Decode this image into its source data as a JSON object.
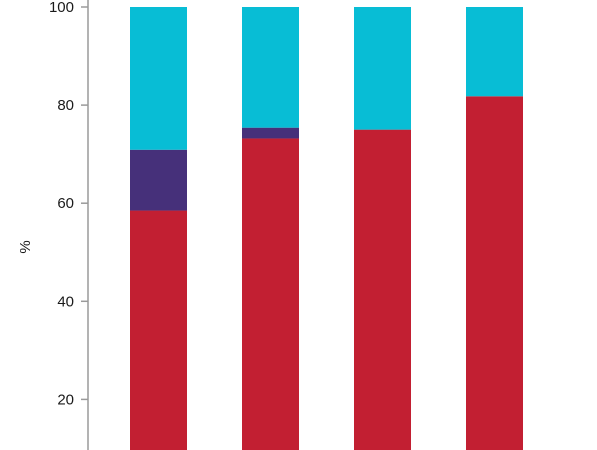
{
  "chart_data": {
    "type": "bar",
    "stacked": true,
    "title": "",
    "xlabel": "",
    "ylabel": "%",
    "ylim": [
      0,
      100
    ],
    "yticks": [
      20,
      40,
      60,
      80,
      100
    ],
    "grid": false,
    "legend": "none",
    "categories": [
      "",
      "",
      "",
      ""
    ],
    "series": [
      {
        "color": "#c21f32",
        "values": [
          58.5,
          73.2,
          75.0,
          81.8
        ]
      },
      {
        "color": "#46307a",
        "values": [
          12.4,
          2.2,
          0,
          0
        ]
      },
      {
        "color": "#08bdd5",
        "values": [
          29.1,
          24.6,
          25.0,
          18.2
        ]
      }
    ],
    "axis_color": "#9a9a9a"
  }
}
